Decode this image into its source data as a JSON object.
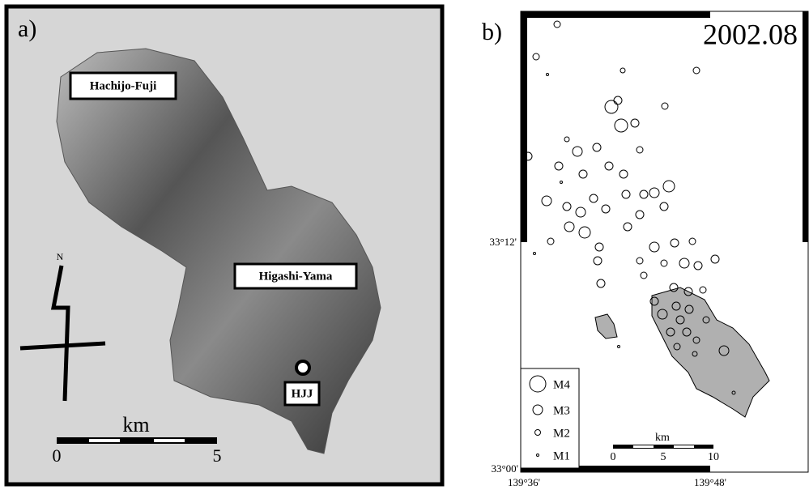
{
  "panel_a": {
    "label": "a)",
    "places": [
      "Hachijo-Fuji",
      "Higashi-Yama",
      "HJJ"
    ],
    "north": "N",
    "scale": {
      "unit": "km",
      "ticks": [
        "0",
        "5"
      ]
    }
  },
  "panel_b": {
    "label": "b)",
    "date": "2002.08",
    "lat_labels": [
      "33°12'",
      "33°00'"
    ],
    "lon_labels": [
      "139°36'",
      "139°48'"
    ],
    "legend": [
      "M4",
      "M3",
      "M2",
      "M1"
    ],
    "scale": {
      "unit": "km",
      "ticks": [
        "0",
        "5",
        "10"
      ]
    }
  }
}
